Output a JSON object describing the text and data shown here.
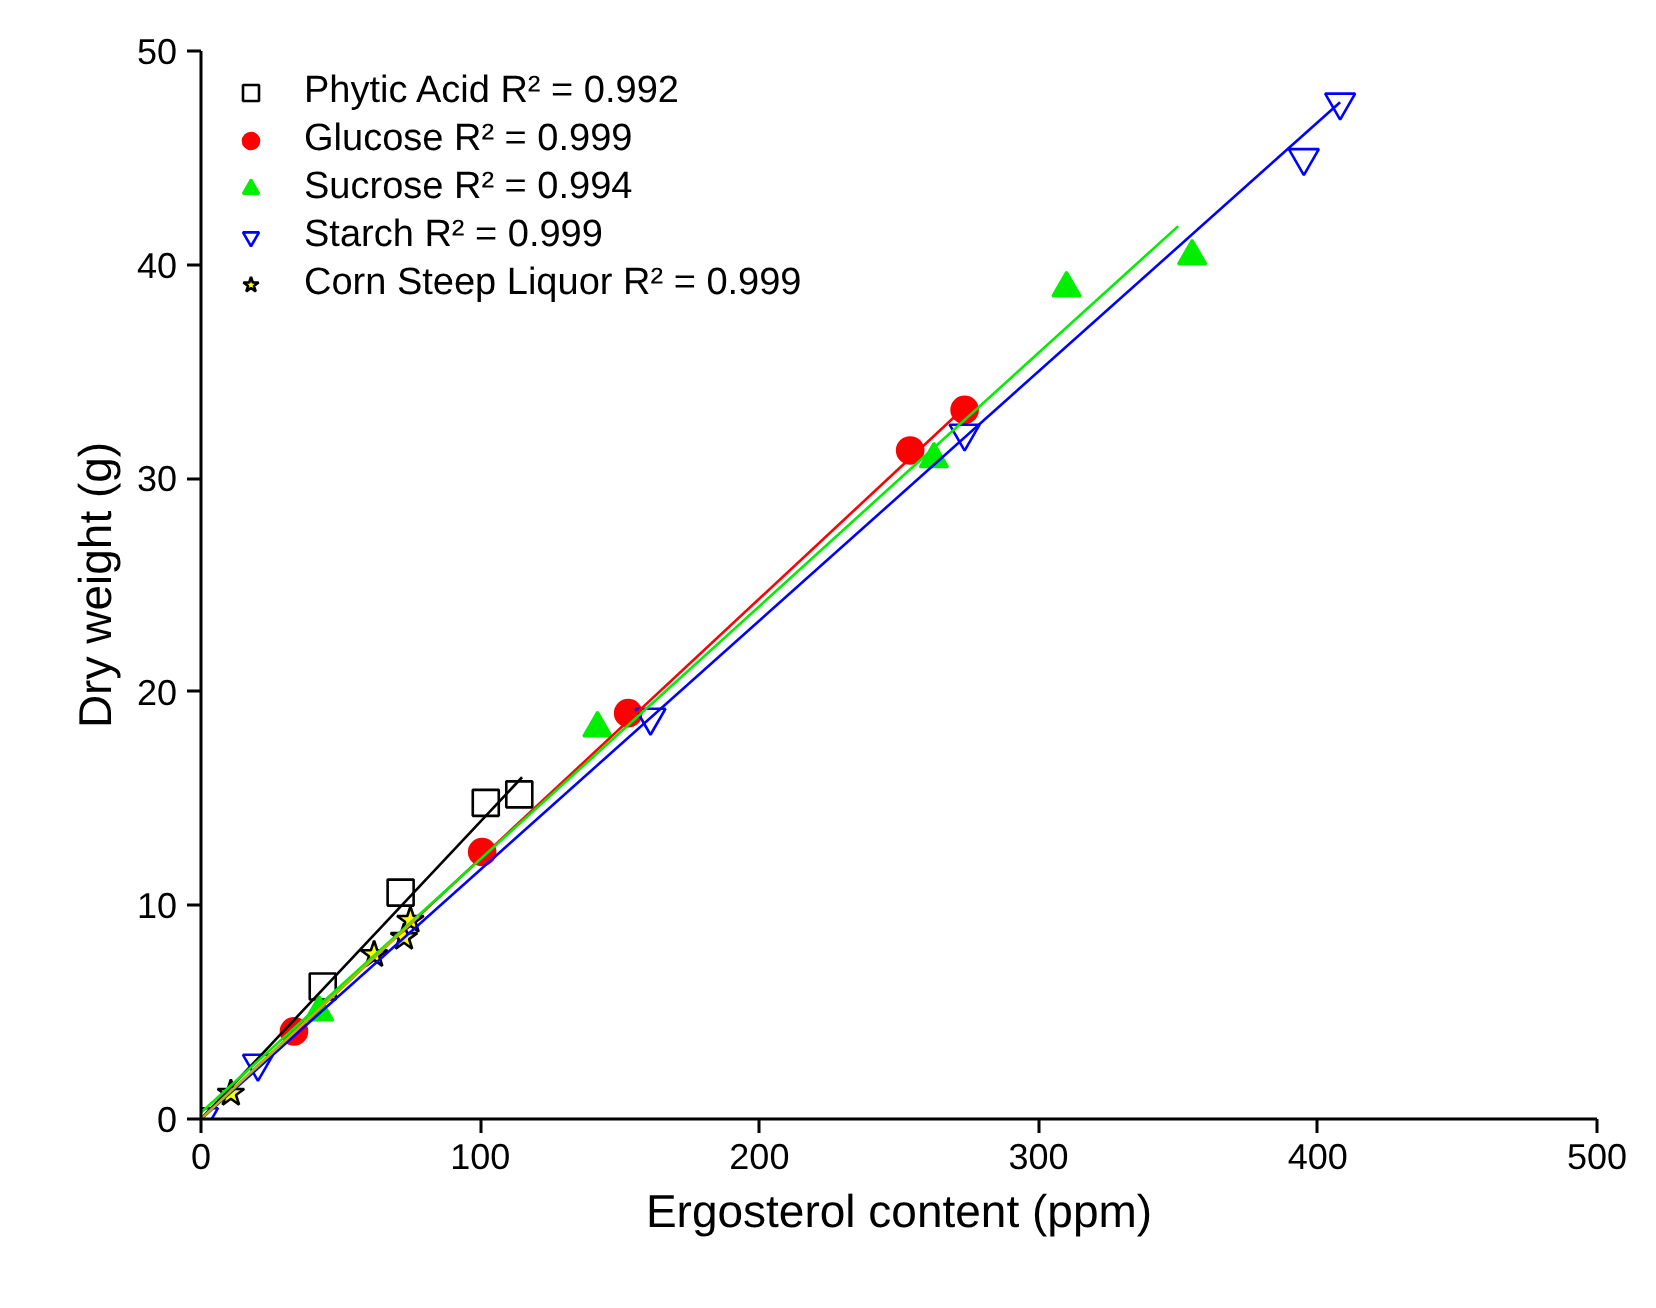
{
  "chart_data": {
    "type": "scatter",
    "xlabel": "Ergosterol content (ppm)",
    "ylabel": "Dry weight (g)",
    "xlim": [
      0,
      500
    ],
    "ylim": [
      0,
      50
    ],
    "xticks": [
      0,
      100,
      200,
      300,
      400,
      500
    ],
    "yticks": [
      0,
      10,
      20,
      30,
      40,
      50
    ],
    "grid": false,
    "legend": "top left",
    "series": [
      {
        "name": "Phytic Acid R² = 0.992",
        "color": "#000000",
        "marker": "square",
        "x": [
          43.6,
          71.5,
          102,
          114
        ],
        "values": [
          6.2,
          10.6,
          14.8,
          15.2
        ]
      },
      {
        "name": "Glucose R² = 0.999",
        "color": "#ff0000",
        "marker": "circle",
        "x": [
          33.3,
          100.7,
          153,
          254,
          273.5
        ],
        "values": [
          4.1,
          12.5,
          19.0,
          31.3,
          33.2
        ]
      },
      {
        "name": "Sucrose R² = 0.994",
        "color": "#00ee00",
        "marker": "triangle",
        "x": [
          42.3,
          142,
          262.5,
          310,
          355
        ],
        "values": [
          5.0,
          18.3,
          30.9,
          38.9,
          40.4
        ]
      },
      {
        "name": "Starch R² = 0.999",
        "color": "#0000ff",
        "x": [
          0.7,
          20.4,
          161,
          273.5,
          395,
          408
        ],
        "values": [
          0.1,
          2.6,
          18.8,
          32.1,
          45.0,
          47.6
        ]
      },
      {
        "name": "Corn Steep Liquor R² = 0.999",
        "color": "#ffff00",
        "marker": "star",
        "x": [
          10.7,
          62,
          72.7,
          75
        ],
        "values": [
          1.2,
          7.7,
          8.5,
          9.3
        ]
      },
      {
        "type": "line",
        "color": "#000000",
        "x": [
          0,
          115
        ],
        "values": [
          0,
          16.0
        ]
      },
      {
        "type": "line",
        "color": "#ff0000",
        "x": [
          0,
          275
        ],
        "values": [
          0,
          33.5
        ]
      },
      {
        "type": "line",
        "color": "#00ee00",
        "x": [
          0,
          350
        ],
        "values": [
          0.3,
          41.8
        ]
      },
      {
        "type": "line",
        "color": "#0000ff",
        "x": [
          0,
          408
        ],
        "values": [
          0,
          47.6
        ]
      },
      {
        "type": "line",
        "color": "#b5b500",
        "x": [
          0,
          78
        ],
        "values": [
          0,
          9.5
        ]
      }
    ]
  }
}
